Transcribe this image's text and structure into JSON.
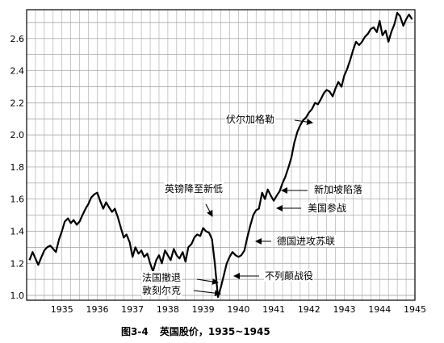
{
  "caption": {
    "figure_no": "图3-4",
    "title": "英国股价，1935~1945"
  },
  "chart_data": {
    "type": "line",
    "title": "",
    "xlabel": "",
    "ylabel": "",
    "xlim": [
      1934.5,
      1945.5
    ],
    "ylim": [
      0.97,
      2.78
    ],
    "grid": true,
    "x_ticks": [
      1935,
      1936,
      1937,
      1938,
      1939,
      1940,
      1941,
      1942,
      1943,
      1944,
      1945
    ],
    "x_tick_labels": [
      "1935",
      "1936",
      "1937",
      "1938",
      "1939",
      "1940",
      "1941",
      "1942",
      "1943",
      "1944",
      "1945"
    ],
    "y_ticks": [
      1.0,
      1.2,
      1.4,
      1.6,
      1.8,
      2.0,
      2.2,
      2.4,
      2.6
    ],
    "y_tick_labels": [
      "1.0",
      "1.2",
      "1.4",
      "1.6",
      "1.8",
      "2.0",
      "2.2",
      "2.4",
      "2.6"
    ],
    "series": [
      {
        "x": [
          1934.58,
          1934.67,
          1934.75,
          1934.83,
          1934.92,
          1935.0,
          1935.08,
          1935.17,
          1935.25,
          1935.33,
          1935.42,
          1935.5,
          1935.58,
          1935.67,
          1935.75,
          1935.83,
          1935.92,
          1936.0,
          1936.08,
          1936.17,
          1936.25,
          1936.33,
          1936.42,
          1936.5,
          1936.58,
          1936.67,
          1936.75,
          1936.83,
          1936.92,
          1937.0,
          1937.08,
          1937.17,
          1937.25,
          1937.33,
          1937.42,
          1937.5,
          1937.58,
          1937.67,
          1937.75,
          1937.83,
          1937.92,
          1938.0,
          1938.08,
          1938.17,
          1938.25,
          1938.33,
          1938.42,
          1938.5,
          1938.58,
          1938.67,
          1938.75,
          1938.83,
          1938.92,
          1939.0,
          1939.08,
          1939.17,
          1939.25,
          1939.33,
          1939.42,
          1939.5,
          1939.58,
          1939.67,
          1939.75,
          1939.83,
          1939.92,
          1940.0,
          1940.08,
          1940.17,
          1940.25,
          1940.33,
          1940.42,
          1940.5,
          1940.58,
          1940.67,
          1940.75,
          1940.83,
          1940.92,
          1941.0,
          1941.08,
          1941.17,
          1941.25,
          1941.33,
          1941.42,
          1941.5,
          1941.58,
          1941.67,
          1941.75,
          1941.83,
          1941.92,
          1942.0,
          1942.08,
          1942.17,
          1942.25,
          1942.33,
          1942.42,
          1942.5,
          1942.58,
          1942.67,
          1942.75,
          1942.83,
          1942.92,
          1943.0,
          1943.08,
          1943.17,
          1943.25,
          1943.33,
          1943.42,
          1943.5,
          1943.58,
          1943.67,
          1943.75,
          1943.83,
          1943.92,
          1944.0,
          1944.08,
          1944.17,
          1944.25,
          1944.33,
          1944.42,
          1944.5,
          1944.58,
          1944.67,
          1944.75,
          1944.83,
          1944.92,
          1945.0,
          1945.08,
          1945.17,
          1945.25,
          1945.33,
          1945.42
        ],
        "values": [
          1.22,
          1.27,
          1.23,
          1.19,
          1.24,
          1.28,
          1.3,
          1.31,
          1.29,
          1.27,
          1.35,
          1.4,
          1.46,
          1.48,
          1.45,
          1.47,
          1.44,
          1.46,
          1.5,
          1.54,
          1.57,
          1.61,
          1.63,
          1.64,
          1.59,
          1.54,
          1.58,
          1.55,
          1.52,
          1.54,
          1.49,
          1.42,
          1.36,
          1.38,
          1.33,
          1.24,
          1.3,
          1.26,
          1.28,
          1.24,
          1.26,
          1.2,
          1.15,
          1.22,
          1.25,
          1.2,
          1.28,
          1.25,
          1.22,
          1.29,
          1.25,
          1.23,
          1.27,
          1.21,
          1.3,
          1.32,
          1.36,
          1.38,
          1.37,
          1.42,
          1.4,
          1.39,
          1.35,
          1.2,
          0.99,
          1.05,
          1.12,
          1.2,
          1.24,
          1.27,
          1.25,
          1.24,
          1.25,
          1.28,
          1.36,
          1.43,
          1.5,
          1.53,
          1.54,
          1.64,
          1.6,
          1.66,
          1.62,
          1.59,
          1.62,
          1.65,
          1.7,
          1.74,
          1.8,
          1.86,
          1.95,
          2.02,
          2.06,
          2.09,
          2.11,
          2.14,
          2.16,
          2.2,
          2.19,
          2.22,
          2.26,
          2.28,
          2.27,
          2.24,
          2.29,
          2.33,
          2.3,
          2.37,
          2.41,
          2.47,
          2.53,
          2.58,
          2.56,
          2.58,
          2.61,
          2.63,
          2.66,
          2.67,
          2.64,
          2.71,
          2.62,
          2.65,
          2.58,
          2.64,
          2.69,
          2.76,
          2.74,
          2.68,
          2.72,
          2.75,
          2.72
        ]
      }
    ],
    "annotations": [
      {
        "text": "英镑降至新低",
        "x": 1939.85,
        "y": 1.44
      },
      {
        "text": "法国撤退",
        "x": 1939.95,
        "y": 1.03
      },
      {
        "text": "敦刻尔克",
        "x": 1940.0,
        "y": 0.99
      },
      {
        "text": "不列颠战役",
        "x": 1940.15,
        "y": 1.07
      },
      {
        "text": "德国进攻苏联",
        "x": 1941.35,
        "y": 1.35
      },
      {
        "text": "美国参战",
        "x": 1941.62,
        "y": 1.55
      },
      {
        "text": "新加坡陷落",
        "x": 1942.0,
        "y": 1.62
      },
      {
        "text": "伏尔加格勒",
        "x": 1942.5,
        "y": 2.09
      }
    ]
  }
}
